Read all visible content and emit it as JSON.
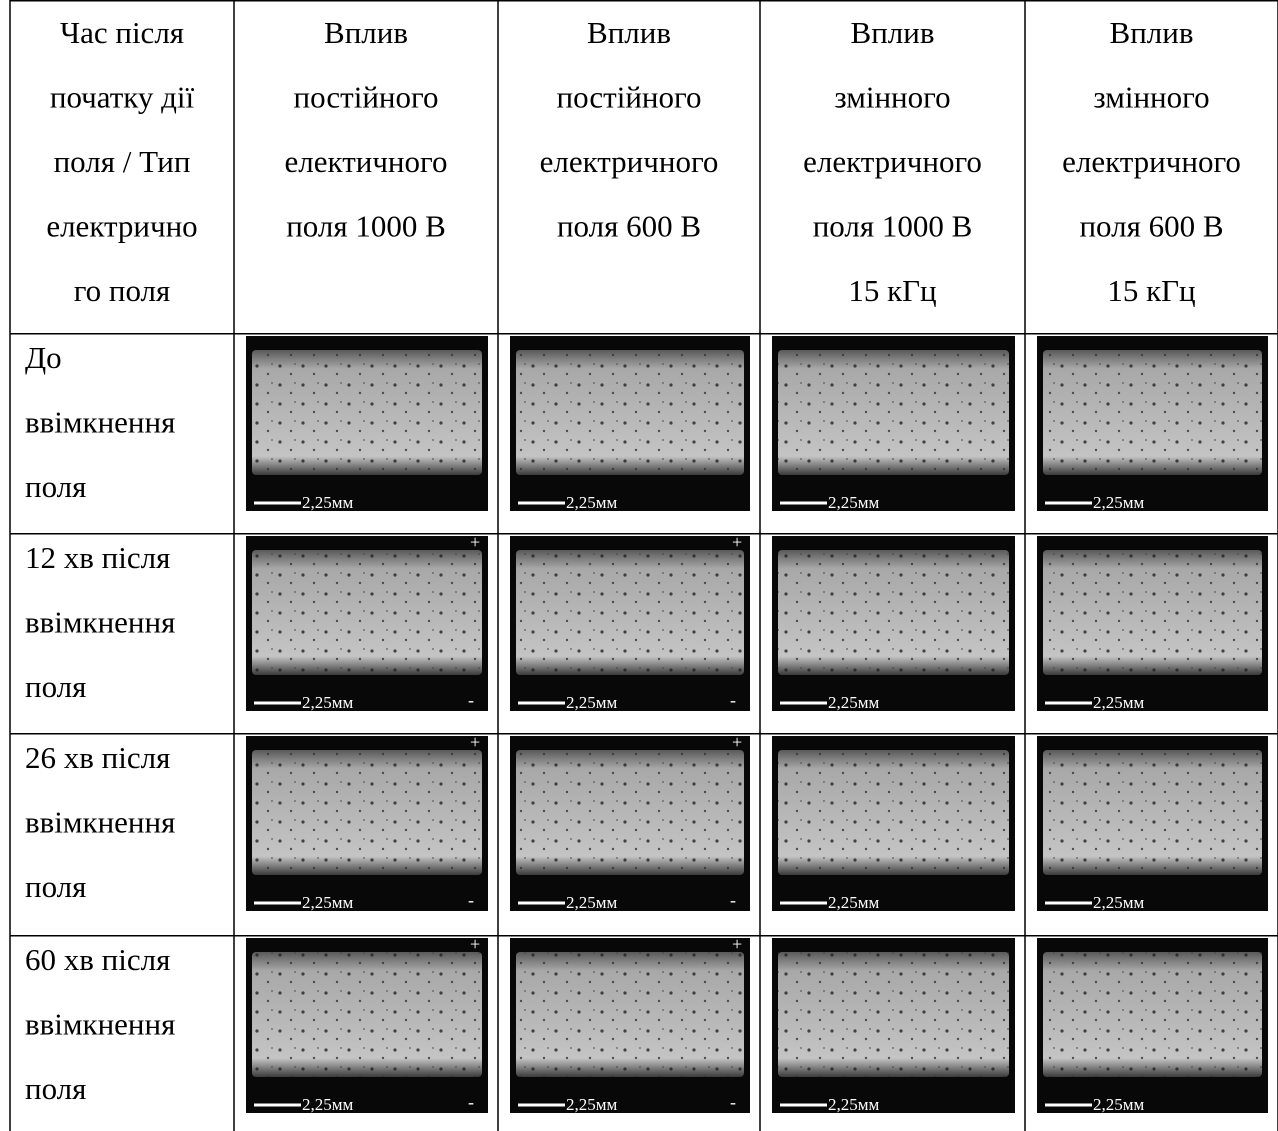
{
  "table": {
    "header": [
      [
        "Час після",
        "початку дії",
        "поля / Тип",
        "електрично",
        "го поля"
      ],
      [
        "Вплив",
        "постійного",
        "електичного",
        "поля 1000 В"
      ],
      [
        "Вплив",
        "постійного",
        "електричного",
        "поля 600 В"
      ],
      [
        "Вплив",
        "змінного",
        "електричного",
        "поля 1000 В",
        "15 кГц"
      ],
      [
        "Вплив",
        "змінного",
        "електричного",
        "поля 600 В",
        "15 кГц"
      ]
    ],
    "rows": [
      {
        "label": [
          "До",
          "ввімкнення",
          "поля"
        ],
        "cells": [
          {
            "scale": "2,25мм"
          },
          {
            "scale": "2,25мм"
          },
          {
            "scale": "2,25мм"
          },
          {
            "scale": "2,25мм"
          }
        ]
      },
      {
        "label": [
          "12 хв після",
          "ввімкнення",
          "поля"
        ],
        "cells": [
          {
            "scale": "2,25мм",
            "plus": "+",
            "minus": "-"
          },
          {
            "scale": "2,25мм",
            "plus": "+",
            "minus": "-"
          },
          {
            "scale": "2,25мм"
          },
          {
            "scale": "2,25мм"
          }
        ]
      },
      {
        "label": [
          "26 хв після",
          "ввімкнення",
          "поля"
        ],
        "cells": [
          {
            "scale": "2,25мм",
            "plus": "+",
            "minus": "-"
          },
          {
            "scale": "2,25мм",
            "plus": "+",
            "minus": "-"
          },
          {
            "scale": "2,25мм"
          },
          {
            "scale": "2,25мм"
          }
        ]
      },
      {
        "label": [
          "60 хв після",
          "ввімкнення",
          "поля"
        ],
        "cells": [
          {
            "scale": "2,25мм",
            "plus": "+",
            "minus": "-"
          },
          {
            "scale": "2,25мм",
            "plus": "+",
            "minus": "-"
          },
          {
            "scale": "2,25мм"
          },
          {
            "scale": "2,25мм"
          }
        ]
      }
    ]
  }
}
